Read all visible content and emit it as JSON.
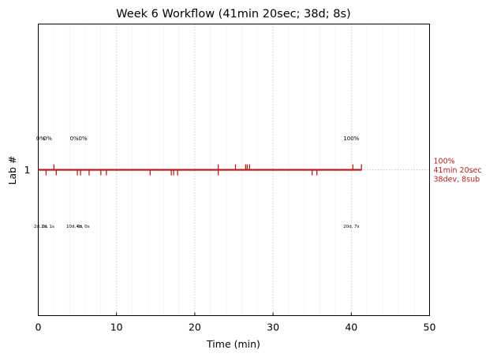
{
  "chart_data": {
    "type": "line",
    "title": "Week 6 Workflow (41min 20sec; 38d; 8s)",
    "xlabel": "Time (min)",
    "ylabel": "Lab #",
    "xlim": [
      0,
      50
    ],
    "ylim": [
      0,
      2
    ],
    "x_ticks": [
      "0",
      "10",
      "20",
      "30",
      "40",
      "50"
    ],
    "y_ticks": [
      "1"
    ],
    "grid": "dotted vertical lines every 10 min, faint lines every 2 min",
    "series": [
      {
        "lab": 1,
        "x_start": 0,
        "x_end": 41.33,
        "y": 1,
        "color": "#b22222",
        "dev_ticks": [
          1.0,
          2.3,
          5.0,
          5.4,
          6.5,
          8.0,
          8.7,
          14.3,
          17.0,
          17.3,
          17.8,
          23.0,
          35.0,
          35.6
        ],
        "sub_ticks": [
          2.0,
          23.0,
          25.2,
          26.5,
          26.7,
          27.0,
          40.2,
          41.3
        ],
        "right_label": [
          "100%",
          "41min 20sec",
          "38dev, 8sub"
        ]
      }
    ],
    "annotations_above": [
      {
        "x": 0.3,
        "text": "0%"
      },
      {
        "x": 1.2,
        "text": "0%"
      },
      {
        "x": 4.6,
        "text": "0%"
      },
      {
        "x": 5.7,
        "text": "0%"
      },
      {
        "x": 40.0,
        "text": "100%"
      }
    ],
    "annotations_below": [
      {
        "x": 0.3,
        "text": "2d, 0s"
      },
      {
        "x": 1.2,
        "text": "2d, 1s"
      },
      {
        "x": 4.6,
        "text": "10d, 0s"
      },
      {
        "x": 5.7,
        "text": "4d, 0s"
      },
      {
        "x": 40.0,
        "text": "20d, 7s"
      }
    ]
  }
}
